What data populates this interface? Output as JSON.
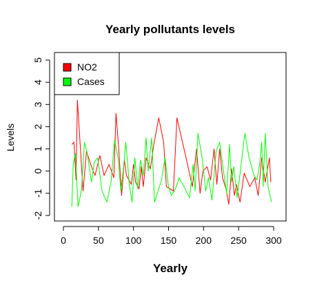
{
  "chart_data": {
    "type": "line",
    "title": "Yearly pollutants levels",
    "xlabel": "Yearly",
    "ylabel": "Levels",
    "xlim": [
      0,
      300
    ],
    "ylim": [
      -2,
      5
    ],
    "xticks": [
      0,
      50,
      100,
      150,
      200,
      250,
      300
    ],
    "yticks": [
      -2,
      -1,
      0,
      1,
      2,
      3,
      4,
      5
    ],
    "grid": false,
    "legend": "top-left",
    "series": [
      {
        "name": "NO2",
        "color": "#ff0000",
        "points": [
          [
            12,
            1.2
          ],
          [
            15,
            1.3
          ],
          [
            18,
            -0.4
          ],
          [
            20,
            3.2
          ],
          [
            28,
            -0.9
          ],
          [
            33,
            0.9
          ],
          [
            40,
            0.2
          ],
          [
            45,
            -0.2
          ],
          [
            52,
            0.7
          ],
          [
            58,
            -0.2
          ],
          [
            65,
            0.3
          ],
          [
            72,
            -0.3
          ],
          [
            75,
            2.6
          ],
          [
            79,
            1.0
          ],
          [
            83,
            -1.1
          ],
          [
            87,
            0.5
          ],
          [
            90,
            -0.2
          ],
          [
            97,
            -0.6
          ],
          [
            100,
            0.3
          ],
          [
            103,
            -0.5
          ],
          [
            108,
            -0.8
          ],
          [
            111,
            0.2
          ],
          [
            114,
            -0.7
          ],
          [
            118,
            0.6
          ],
          [
            124,
            0.1
          ],
          [
            129,
            1.2
          ],
          [
            136,
            2.4
          ],
          [
            143,
            1.3
          ],
          [
            147,
            -0.7
          ],
          [
            157,
            -0.9
          ],
          [
            162,
            2.4
          ],
          [
            175,
            0.6
          ],
          [
            184,
            -0.7
          ],
          [
            190,
            1.0
          ],
          [
            195,
            -1.0
          ],
          [
            199,
            0.0
          ],
          [
            205,
            0.2
          ],
          [
            210,
            -0.4
          ],
          [
            215,
            1.0
          ],
          [
            219,
            -0.6
          ],
          [
            223,
            1.0
          ],
          [
            227,
            -0.3
          ],
          [
            232,
            -0.8
          ],
          [
            236,
            -1.5
          ],
          [
            240,
            0.1
          ],
          [
            244,
            -1.1
          ],
          [
            247,
            -0.6
          ],
          [
            252,
            -1.4
          ],
          [
            258,
            -0.1
          ],
          [
            266,
            -0.7
          ],
          [
            273,
            -0.3
          ],
          [
            278,
            -1.1
          ],
          [
            283,
            0.6
          ],
          [
            288,
            -0.5
          ],
          [
            294,
            0.6
          ],
          [
            296,
            -0.5
          ]
        ]
      },
      {
        "name": "Cases",
        "color": "#00ff00",
        "points": [
          [
            12,
            -1.6
          ],
          [
            14,
            0.3
          ],
          [
            17,
            0.8
          ],
          [
            21,
            -1.6
          ],
          [
            26,
            -0.8
          ],
          [
            30,
            1.3
          ],
          [
            34,
            0.8
          ],
          [
            40,
            -0.5
          ],
          [
            44,
            0.4
          ],
          [
            49,
            0.6
          ],
          [
            55,
            -0.9
          ],
          [
            62,
            -1.4
          ],
          [
            68,
            -0.5
          ],
          [
            73,
            1.4
          ],
          [
            78,
            0.6
          ],
          [
            82,
            -0.9
          ],
          [
            86,
            0.2
          ],
          [
            89,
            1.3
          ],
          [
            94,
            -0.6
          ],
          [
            98,
            -1.4
          ],
          [
            102,
            0.6
          ],
          [
            106,
            -0.8
          ],
          [
            110,
            0.5
          ],
          [
            114,
            -0.2
          ],
          [
            118,
            1.5
          ],
          [
            121,
            0.0
          ],
          [
            126,
            1.5
          ],
          [
            130,
            -1.4
          ],
          [
            135,
            -0.9
          ],
          [
            140,
            -0.4
          ],
          [
            145,
            0.6
          ],
          [
            150,
            -0.7
          ],
          [
            154,
            -1.1
          ],
          [
            160,
            -0.8
          ],
          [
            165,
            -0.3
          ],
          [
            172,
            -0.7
          ],
          [
            180,
            -1.2
          ],
          [
            185,
            0.3
          ],
          [
            188,
            -0.9
          ],
          [
            192,
            1.7
          ],
          [
            198,
            0.6
          ],
          [
            203,
            -0.9
          ],
          [
            207,
            -0.3
          ],
          [
            212,
            -1.3
          ],
          [
            218,
            0.9
          ],
          [
            223,
            1.3
          ],
          [
            228,
            0.1
          ],
          [
            233,
            -1.0
          ],
          [
            237,
            1.2
          ],
          [
            240,
            -0.5
          ],
          [
            243,
            0.2
          ],
          [
            248,
            -1.2
          ],
          [
            254,
            0.4
          ],
          [
            259,
            1.7
          ],
          [
            265,
            0.6
          ],
          [
            272,
            -0.2
          ],
          [
            276,
            -0.4
          ],
          [
            280,
            0.3
          ],
          [
            283,
            1.3
          ],
          [
            285,
            -0.7
          ],
          [
            288,
            1.7
          ],
          [
            292,
            -0.7
          ],
          [
            297,
            -1.4
          ]
        ]
      }
    ]
  }
}
